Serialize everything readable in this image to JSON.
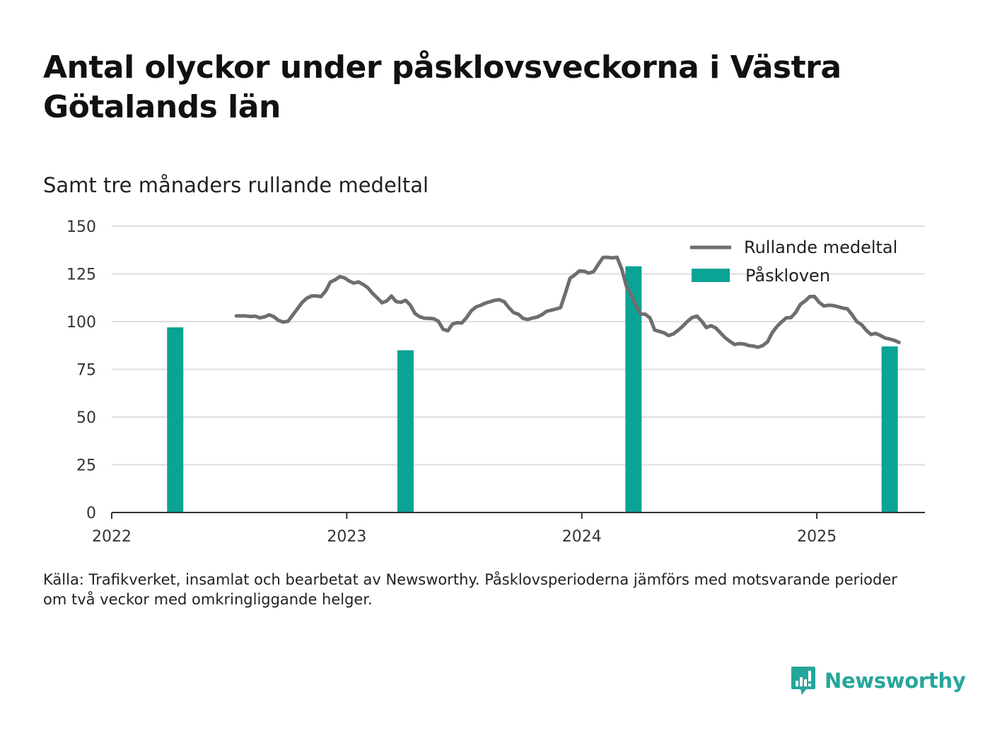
{
  "header": {
    "title": "Antal olyckor under påsklovsveckorna i Västra Götalands län",
    "subtitle": "Samt tre månaders rullande medeltal"
  },
  "footer": {
    "source_line1": "Källa: Trafikverket, insamlat och bearbetat av Newsworthy. Påsklovsperioderna jämförs med motsvarande perioder",
    "source_line2": "om två veckor med omkringliggande helger."
  },
  "brand": {
    "name": "Newsworthy",
    "icon": "newsworthy-logo-icon",
    "color": "#26a69a"
  },
  "chart_data": {
    "type": "bar",
    "title": "Antal olyckor under påsklovsveckorna i Västra Götalands län",
    "subtitle": "Samt tre månaders rullande medeltal",
    "xlabel": "",
    "ylabel": "",
    "x_ticks": [
      "2022",
      "2023",
      "2024",
      "2025"
    ],
    "x_tick_values": [
      2022,
      2023,
      2024,
      2025
    ],
    "xlim": [
      2022,
      2025.46
    ],
    "y_ticks": [
      0,
      25,
      50,
      75,
      100,
      125,
      150
    ],
    "ylim": [
      0,
      150
    ],
    "grid": "horizontal",
    "legend_position": "top-right",
    "colors": {
      "line": "#6e6e6e",
      "bar": "#0aa396",
      "grid": "#dddddd",
      "axis": "#333333"
    },
    "series": [
      {
        "name": "Påskloven",
        "kind": "bar",
        "color": "#0aa396",
        "points": [
          {
            "x": 2022.27,
            "y": 97
          },
          {
            "x": 2023.25,
            "y": 85
          },
          {
            "x": 2024.22,
            "y": 129
          },
          {
            "x": 2025.31,
            "y": 87
          }
        ]
      },
      {
        "name": "Rullande medeltal",
        "kind": "line",
        "color": "#6e6e6e",
        "points": [
          [
            2022.53,
            103
          ],
          [
            2022.57,
            103
          ],
          [
            2022.59,
            102.7
          ],
          [
            2022.61,
            102.9
          ],
          [
            2022.63,
            102
          ],
          [
            2022.65,
            102.5
          ],
          [
            2022.67,
            103.6
          ],
          [
            2022.69,
            102.6
          ],
          [
            2022.71,
            100.6
          ],
          [
            2022.73,
            99.8
          ],
          [
            2022.75,
            100.2
          ],
          [
            2022.77,
            103.4
          ],
          [
            2022.79,
            106.7
          ],
          [
            2022.81,
            110
          ],
          [
            2022.83,
            112.3
          ],
          [
            2022.85,
            113.4
          ],
          [
            2022.87,
            113.5
          ],
          [
            2022.89,
            113.1
          ],
          [
            2022.91,
            116
          ],
          [
            2022.93,
            120.7
          ],
          [
            2022.95,
            121.9
          ],
          [
            2022.97,
            123.6
          ],
          [
            2022.99,
            123
          ],
          [
            2023.01,
            121.3
          ],
          [
            2023.03,
            120.2
          ],
          [
            2023.05,
            120.8
          ],
          [
            2023.07,
            119.5
          ],
          [
            2023.09,
            117.7
          ],
          [
            2023.11,
            114.8
          ],
          [
            2023.13,
            112.4
          ],
          [
            2023.15,
            109.9
          ],
          [
            2023.17,
            110.8
          ],
          [
            2023.19,
            113.4
          ],
          [
            2023.21,
            110.5
          ],
          [
            2023.23,
            110.1
          ],
          [
            2023.25,
            111.2
          ],
          [
            2023.27,
            108.7
          ],
          [
            2023.29,
            104.3
          ],
          [
            2023.31,
            102.6
          ],
          [
            2023.33,
            101.8
          ],
          [
            2023.35,
            101.7
          ],
          [
            2023.37,
            101.5
          ],
          [
            2023.39,
            100.2
          ],
          [
            2023.41,
            96
          ],
          [
            2023.43,
            95.2
          ],
          [
            2023.45,
            98.7
          ],
          [
            2023.47,
            99.5
          ],
          [
            2023.49,
            99.3
          ],
          [
            2023.51,
            102.2
          ],
          [
            2023.53,
            105.7
          ],
          [
            2023.55,
            107.7
          ],
          [
            2023.57,
            108.6
          ],
          [
            2023.59,
            109.7
          ],
          [
            2023.61,
            110.4
          ],
          [
            2023.63,
            111.2
          ],
          [
            2023.65,
            111.5
          ],
          [
            2023.67,
            110.4
          ],
          [
            2023.69,
            107.3
          ],
          [
            2023.71,
            104.7
          ],
          [
            2023.73,
            103.9
          ],
          [
            2023.75,
            101.7
          ],
          [
            2023.77,
            101.1
          ],
          [
            2023.79,
            101.9
          ],
          [
            2023.81,
            102.4
          ],
          [
            2023.83,
            103.6
          ],
          [
            2023.85,
            105.4
          ],
          [
            2023.87,
            106
          ],
          [
            2023.89,
            106.6
          ],
          [
            2023.91,
            107.4
          ],
          [
            2023.93,
            114.9
          ],
          [
            2023.95,
            122.7
          ],
          [
            2023.97,
            124.5
          ],
          [
            2023.99,
            126.6
          ],
          [
            2024.01,
            126.4
          ],
          [
            2024.03,
            125.4
          ],
          [
            2024.05,
            126.2
          ],
          [
            2024.07,
            130
          ],
          [
            2024.09,
            133.6
          ],
          [
            2024.11,
            133.7
          ],
          [
            2024.13,
            133.4
          ],
          [
            2024.15,
            133.7
          ],
          [
            2024.17,
            127.6
          ],
          [
            2024.19,
            118.5
          ],
          [
            2024.21,
            114
          ],
          [
            2024.23,
            108.5
          ],
          [
            2024.25,
            104
          ],
          [
            2024.27,
            103.9
          ],
          [
            2024.29,
            102
          ],
          [
            2024.31,
            95.6
          ],
          [
            2024.33,
            94.9
          ],
          [
            2024.35,
            94.1
          ],
          [
            2024.37,
            92.7
          ],
          [
            2024.39,
            93.6
          ],
          [
            2024.41,
            95.5
          ],
          [
            2024.43,
            97.7
          ],
          [
            2024.45,
            100.2
          ],
          [
            2024.47,
            102.2
          ],
          [
            2024.49,
            102.9
          ],
          [
            2024.51,
            100.3
          ],
          [
            2024.53,
            96.9
          ],
          [
            2024.55,
            97.9
          ],
          [
            2024.57,
            96.7
          ],
          [
            2024.59,
            94.1
          ],
          [
            2024.61,
            91.6
          ],
          [
            2024.63,
            89.7
          ],
          [
            2024.65,
            88
          ],
          [
            2024.67,
            88.5
          ],
          [
            2024.69,
            88.3
          ],
          [
            2024.71,
            87.5
          ],
          [
            2024.73,
            87.2
          ],
          [
            2024.75,
            86.6
          ],
          [
            2024.77,
            87.5
          ],
          [
            2024.79,
            89.4
          ],
          [
            2024.81,
            94.2
          ],
          [
            2024.83,
            97.4
          ],
          [
            2024.85,
            99.9
          ],
          [
            2024.87,
            102
          ],
          [
            2024.89,
            102.1
          ],
          [
            2024.91,
            104.8
          ],
          [
            2024.93,
            109
          ],
          [
            2024.95,
            110.8
          ],
          [
            2024.97,
            113.1
          ],
          [
            2024.99,
            113.2
          ],
          [
            2025.01,
            110.1
          ],
          [
            2025.03,
            108.2
          ],
          [
            2025.05,
            108.6
          ],
          [
            2025.07,
            108.4
          ],
          [
            2025.09,
            107.8
          ],
          [
            2025.11,
            107.1
          ],
          [
            2025.13,
            106.7
          ],
          [
            2025.15,
            103.6
          ],
          [
            2025.17,
            100
          ],
          [
            2025.19,
            98.5
          ],
          [
            2025.21,
            95.5
          ],
          [
            2025.23,
            93.3
          ],
          [
            2025.25,
            93.8
          ],
          [
            2025.27,
            92.8
          ],
          [
            2025.29,
            91.4
          ],
          [
            2025.31,
            90.9
          ],
          [
            2025.33,
            90.2
          ],
          [
            2025.35,
            89.1
          ]
        ]
      }
    ]
  }
}
